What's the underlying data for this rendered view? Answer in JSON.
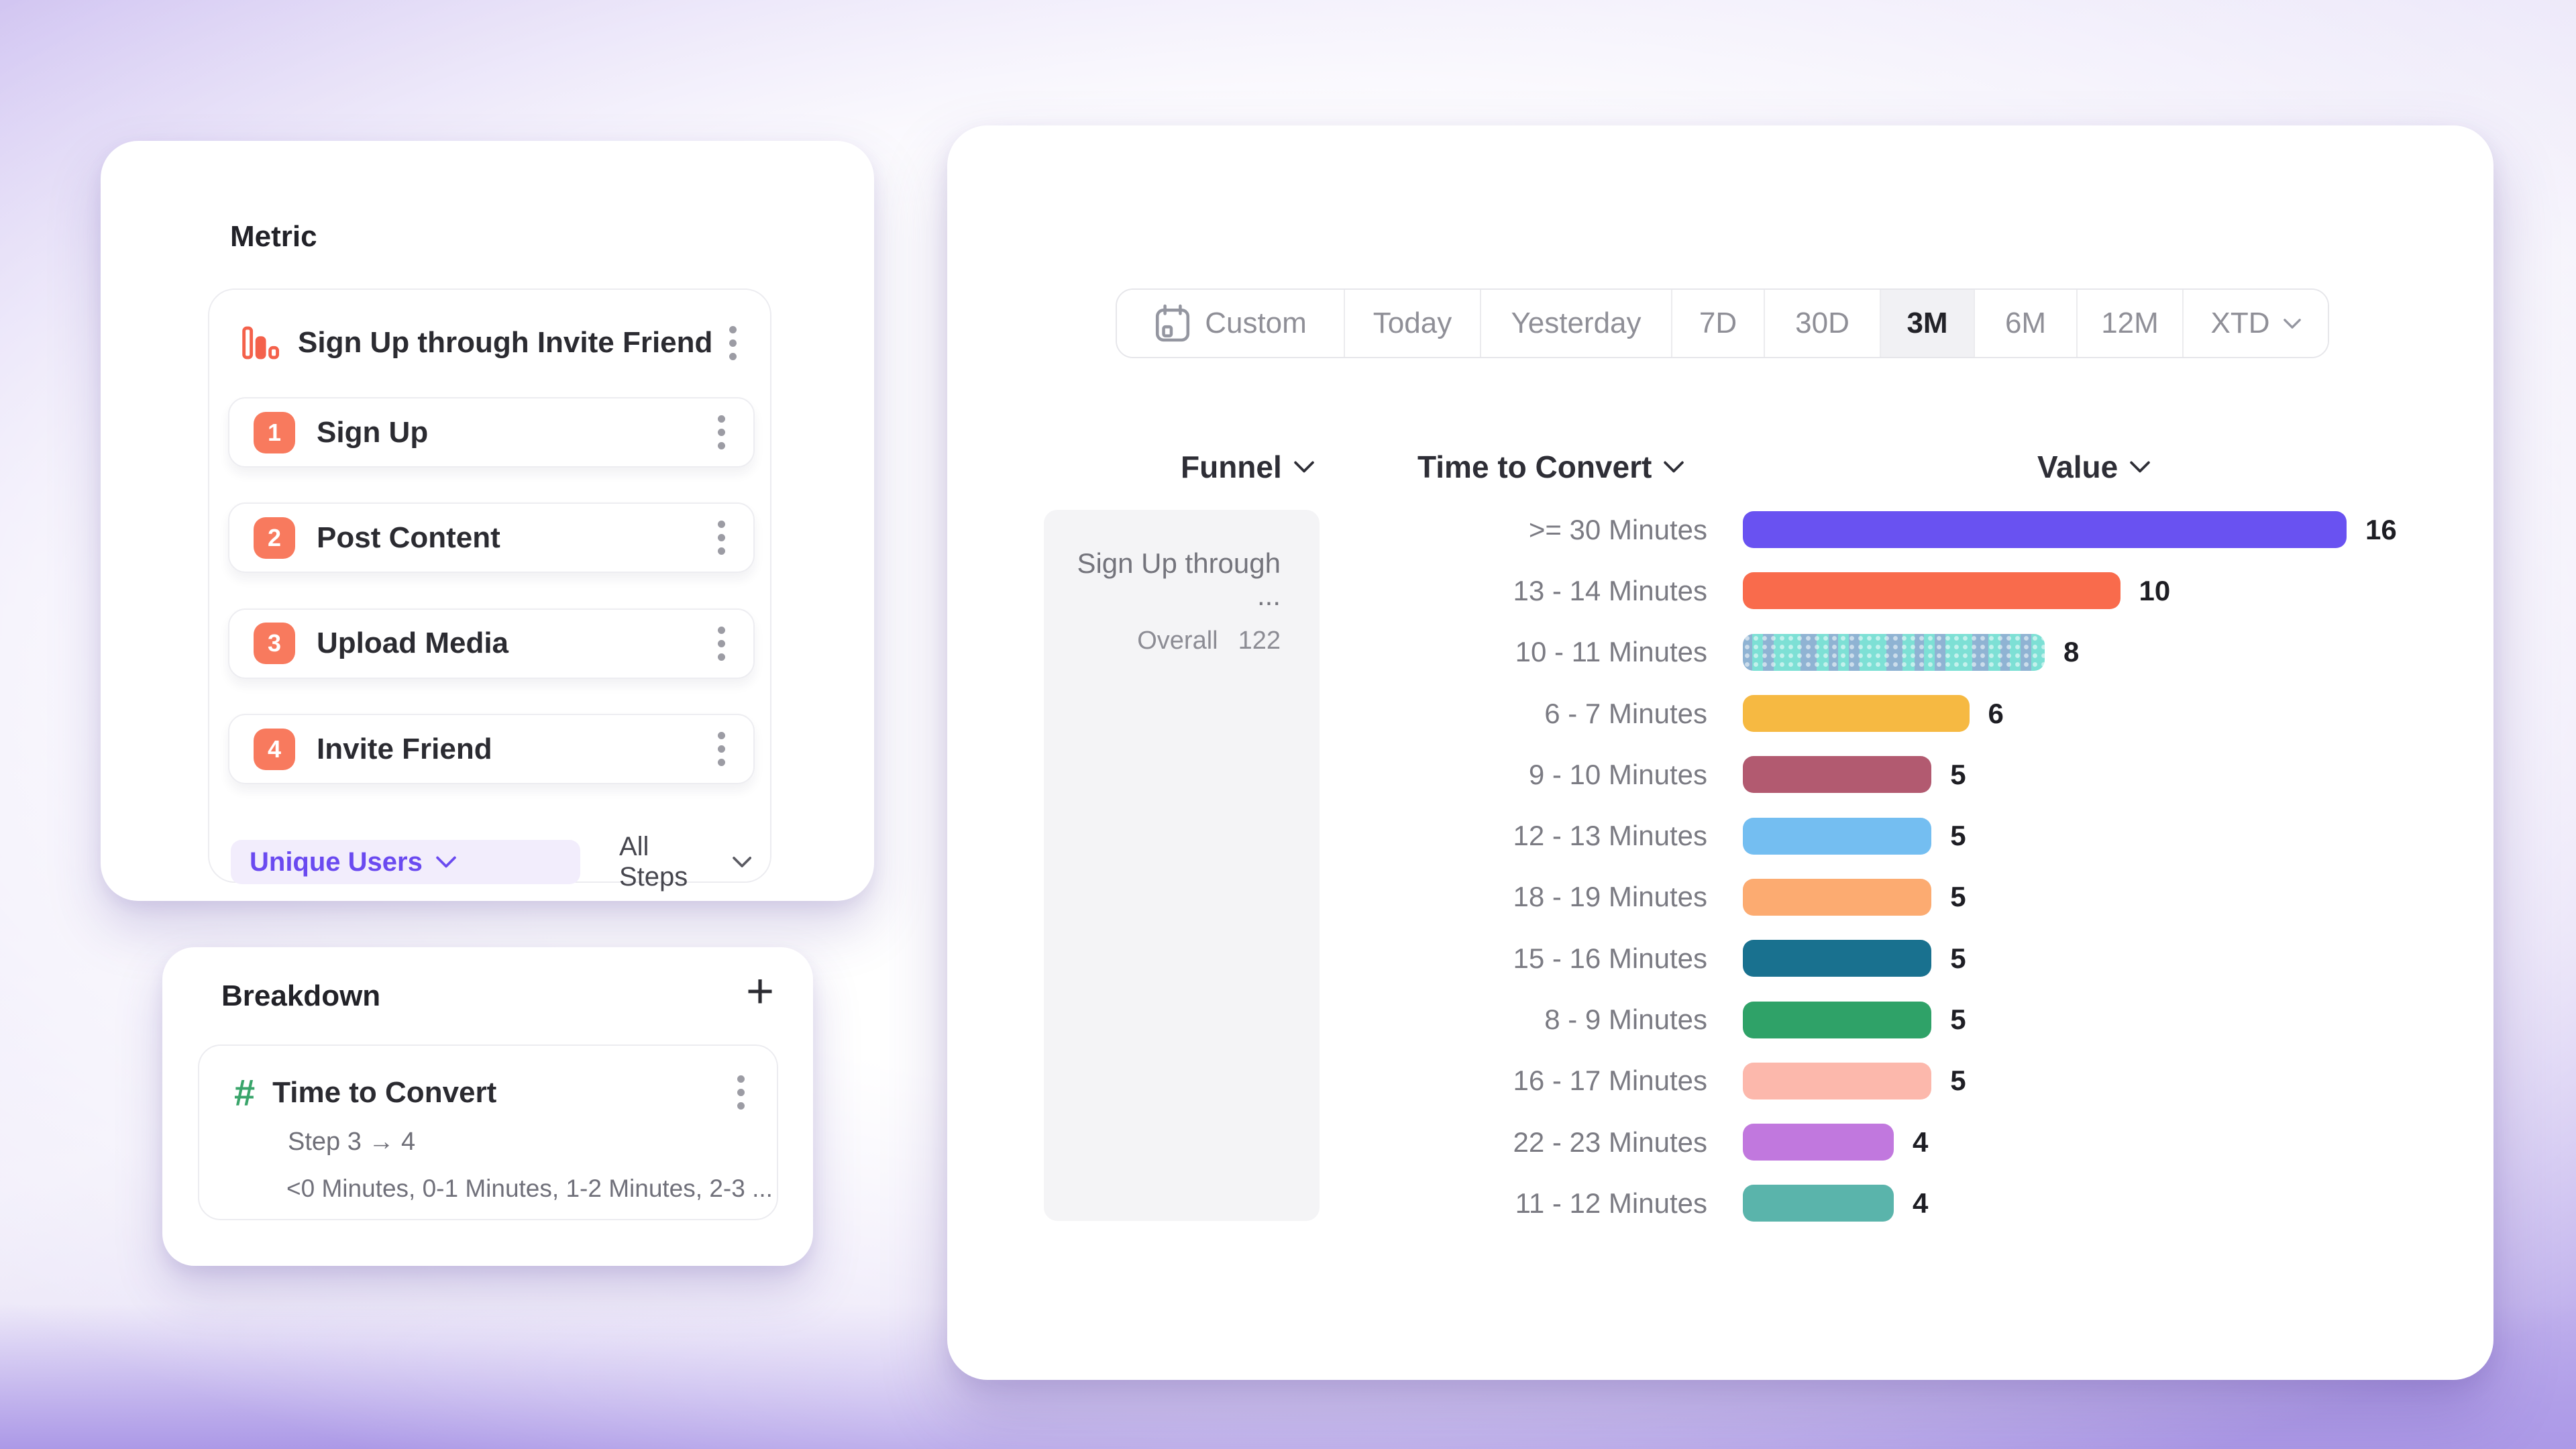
{
  "theme": {
    "accent_purple": "#6a4af0",
    "badge_coral": "#f87a5e",
    "hash_green": "#3aa56b",
    "card_background": "#ffffff",
    "page_gradient_edge": "#b6a5ea"
  },
  "metric_panel": {
    "title": "Metric",
    "funnel": {
      "name": "Sign Up through Invite Friend",
      "steps": [
        {
          "num": "1",
          "label": "Sign Up"
        },
        {
          "num": "2",
          "label": "Post Content"
        },
        {
          "num": "3",
          "label": "Upload Media"
        },
        {
          "num": "4",
          "label": "Invite Friend"
        }
      ],
      "counting": "Unique Users",
      "steps_filter": "All Steps"
    }
  },
  "breakdown_panel": {
    "title": "Breakdown",
    "add_label": "+",
    "property": {
      "name": "Time to Convert",
      "step_range": "Step 3 → 4",
      "buckets_preview": "<0 Minutes, 0-1 Minutes, 1-2 Minutes, 2-3 ..."
    }
  },
  "report_panel": {
    "date_ranges": [
      {
        "label": "Custom",
        "has_calendar_icon": true
      },
      {
        "label": "Today"
      },
      {
        "label": "Yesterday"
      },
      {
        "label": "7D"
      },
      {
        "label": "30D"
      },
      {
        "label": "3M",
        "selected": true
      },
      {
        "label": "6M"
      },
      {
        "label": "12M"
      },
      {
        "label": "XTD",
        "has_chevron": true
      }
    ],
    "selected_range": "3M",
    "columns": {
      "funnel": "Funnel",
      "breakdown": "Time to Convert",
      "value": "Value"
    },
    "funnel_cell": {
      "name": "Sign Up through ...",
      "overall_label": "Overall",
      "overall_value": "122"
    }
  },
  "chart_data": {
    "type": "bar",
    "orientation": "horizontal",
    "categories": [
      ">= 30 Minutes",
      "13 - 14 Minutes",
      "10 - 11 Minutes",
      "6 - 7 Minutes",
      "9 - 10 Minutes",
      "12 - 13 Minutes",
      "18 - 19 Minutes",
      "15 - 16 Minutes",
      "8 - 9 Minutes",
      "16 - 17 Minutes",
      "22 - 23 Minutes",
      "11 - 12 Minutes"
    ],
    "values": [
      16,
      10,
      8,
      6,
      5,
      5,
      5,
      5,
      5,
      5,
      4,
      4
    ],
    "colors": [
      "#6952f1",
      "#f96b4c",
      "#7de0d5",
      "#f6b942",
      "#b25a70",
      "#74bef1",
      "#fcab71",
      "#19718f",
      "#2fa268",
      "#fcb8ac",
      "#c178de",
      "#5ab4ab"
    ],
    "striped_category": "10 - 11 Minutes",
    "xlim": [
      0,
      16
    ],
    "grid": false,
    "legend": false
  }
}
